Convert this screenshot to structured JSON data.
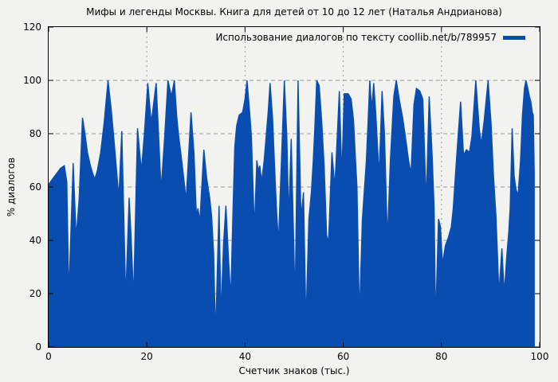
{
  "colors": {
    "background": "#f2f2ee",
    "series_blue": "#0a4db1",
    "grid": "#9c9c9c",
    "border": "#000000",
    "text": "#000000"
  },
  "chart_data": {
    "type": "area",
    "title": "Мифы и легенды Москвы. Книга для детей от 10 до 12 лет (Наталья Андрианова)",
    "xlabel": "Счетчик знаков (тыс.)",
    "ylabel": "% диалогов",
    "xlim": [
      0,
      100
    ],
    "ylim": [
      0,
      120
    ],
    "x_ticks": [
      0,
      20,
      40,
      60,
      80,
      100
    ],
    "y_ticks": [
      0,
      20,
      40,
      60,
      80,
      100,
      120
    ],
    "grid": true,
    "legend_position": "top-right-inside",
    "series": [
      {
        "name": "Использование диалогов по тексту coollib.net/b/789957",
        "color": "#0a4db1",
        "points": [
          [
            0,
            61
          ],
          [
            0.8,
            63
          ],
          [
            1.6,
            65
          ],
          [
            2.4,
            67
          ],
          [
            3.2,
            68
          ],
          [
            3.7,
            62
          ],
          [
            4.1,
            19
          ],
          [
            5,
            69
          ],
          [
            5.6,
            41
          ],
          [
            6.2,
            55
          ],
          [
            6.9,
            86
          ],
          [
            7.4,
            80
          ],
          [
            7.9,
            73
          ],
          [
            8.5,
            68
          ],
          [
            9,
            65
          ],
          [
            9.4,
            63
          ],
          [
            9.9,
            66
          ],
          [
            10.6,
            73
          ],
          [
            11.3,
            84
          ],
          [
            12.1,
            100
          ],
          [
            12.7,
            90
          ],
          [
            13.2,
            80
          ],
          [
            13.8,
            67
          ],
          [
            14.3,
            56
          ],
          [
            14.9,
            81
          ],
          [
            15.7,
            18
          ],
          [
            16.4,
            56
          ],
          [
            16.8,
            41
          ],
          [
            17.3,
            18
          ],
          [
            18.1,
            82
          ],
          [
            18.9,
            66
          ],
          [
            19.5,
            80
          ],
          [
            20.2,
            99
          ],
          [
            20.9,
            84
          ],
          [
            21.9,
            99
          ],
          [
            22.9,
            59
          ],
          [
            23.6,
            78
          ],
          [
            24.3,
            100
          ],
          [
            25,
            94
          ],
          [
            25.6,
            100
          ],
          [
            26.1,
            86
          ],
          [
            26.5,
            79
          ],
          [
            27.1,
            70
          ],
          [
            27.6,
            62
          ],
          [
            28,
            55
          ],
          [
            29,
            88
          ],
          [
            29.6,
            73
          ],
          [
            30.1,
            49
          ],
          [
            30.4,
            52
          ],
          [
            30.8,
            47
          ],
          [
            31.6,
            74
          ],
          [
            32.2,
            63
          ],
          [
            32.8,
            56
          ],
          [
            33.2,
            49
          ],
          [
            33.6,
            35
          ],
          [
            34,
            4
          ],
          [
            34.7,
            53
          ],
          [
            35.1,
            11
          ],
          [
            35.6,
            38
          ],
          [
            36.1,
            53
          ],
          [
            36.6,
            34
          ],
          [
            37.1,
            18
          ],
          [
            37.5,
            48
          ],
          [
            37.9,
            75
          ],
          [
            38.3,
            83
          ],
          [
            38.8,
            87
          ],
          [
            39.5,
            88
          ],
          [
            40,
            93
          ],
          [
            40.4,
            100
          ],
          [
            40.9,
            89
          ],
          [
            41.3,
            79
          ],
          [
            41.9,
            44
          ],
          [
            42.4,
            70
          ],
          [
            42.7,
            66
          ],
          [
            43,
            68
          ],
          [
            43.4,
            62
          ],
          [
            43.9,
            70
          ],
          [
            44.3,
            79
          ],
          [
            44.7,
            88
          ],
          [
            45.1,
            99
          ],
          [
            45.6,
            86
          ],
          [
            46,
            68
          ],
          [
            46.4,
            52
          ],
          [
            46.8,
            39
          ],
          [
            48,
            100
          ],
          [
            48.5,
            79
          ],
          [
            48.9,
            48
          ],
          [
            49.4,
            78
          ],
          [
            50.2,
            17
          ],
          [
            50.8,
            100
          ],
          [
            51.4,
            48
          ],
          [
            51.9,
            58
          ],
          [
            52.4,
            9
          ],
          [
            53,
            48
          ],
          [
            53.5,
            58
          ],
          [
            53.9,
            70
          ],
          [
            54.2,
            82
          ],
          [
            54.6,
            100
          ],
          [
            55.1,
            98
          ],
          [
            55.6,
            85
          ],
          [
            56.1,
            68
          ],
          [
            56.6,
            42
          ],
          [
            57,
            39
          ],
          [
            57.7,
            73
          ],
          [
            58.3,
            60
          ],
          [
            59.2,
            96
          ],
          [
            59.7,
            64
          ],
          [
            60.2,
            95
          ],
          [
            61,
            95
          ],
          [
            61.6,
            93
          ],
          [
            62.1,
            85
          ],
          [
            62.5,
            70
          ],
          [
            62.8,
            60
          ],
          [
            63.3,
            11
          ],
          [
            63.9,
            48
          ],
          [
            64.3,
            59
          ],
          [
            64.7,
            70
          ],
          [
            65,
            82
          ],
          [
            65.4,
            100
          ],
          [
            65.8,
            89
          ],
          [
            66.2,
            99
          ],
          [
            66.6,
            88
          ],
          [
            66.9,
            78
          ],
          [
            67.3,
            64
          ],
          [
            67.9,
            96
          ],
          [
            68.4,
            80
          ],
          [
            69,
            40
          ],
          [
            69.6,
            70
          ],
          [
            70.3,
            94
          ],
          [
            70.8,
            100
          ],
          [
            71.4,
            93
          ],
          [
            72.1,
            86
          ],
          [
            72.8,
            77
          ],
          [
            73.3,
            70
          ],
          [
            73.8,
            65
          ],
          [
            74.4,
            91
          ],
          [
            74.9,
            97
          ],
          [
            75.6,
            96
          ],
          [
            76.2,
            93
          ],
          [
            76.9,
            54
          ],
          [
            77.5,
            94
          ],
          [
            78.1,
            72
          ],
          [
            78.5,
            52
          ],
          [
            78.8,
            9
          ],
          [
            79.4,
            48
          ],
          [
            79.8,
            45
          ],
          [
            80.2,
            31
          ],
          [
            80.8,
            38
          ],
          [
            81.4,
            41
          ],
          [
            82,
            45
          ],
          [
            82.4,
            52
          ],
          [
            82.8,
            63
          ],
          [
            83.2,
            74
          ],
          [
            83.9,
            92
          ],
          [
            84.5,
            72
          ],
          [
            85.1,
            74
          ],
          [
            85.7,
            73
          ],
          [
            86.2,
            79
          ],
          [
            87,
            100
          ],
          [
            87.7,
            82
          ],
          [
            88.1,
            76
          ],
          [
            88.7,
            85
          ],
          [
            89.5,
            100
          ],
          [
            90.1,
            84
          ],
          [
            90.6,
            64
          ],
          [
            91.1,
            49
          ],
          [
            91.7,
            20
          ],
          [
            92.3,
            37
          ],
          [
            92.8,
            20
          ],
          [
            93.3,
            34
          ],
          [
            93.7,
            43
          ],
          [
            94,
            52
          ],
          [
            94.4,
            82
          ],
          [
            94.8,
            64
          ],
          [
            95.2,
            59
          ],
          [
            95.6,
            57
          ],
          [
            96.1,
            70
          ],
          [
            96.5,
            87
          ],
          [
            96.9,
            97
          ],
          [
            97.2,
            100
          ],
          [
            97.6,
            97
          ],
          [
            97.9,
            94
          ],
          [
            98.2,
            92
          ],
          [
            98.5,
            88
          ],
          [
            98.7,
            87
          ],
          [
            98.9,
            65
          ]
        ]
      }
    ]
  }
}
